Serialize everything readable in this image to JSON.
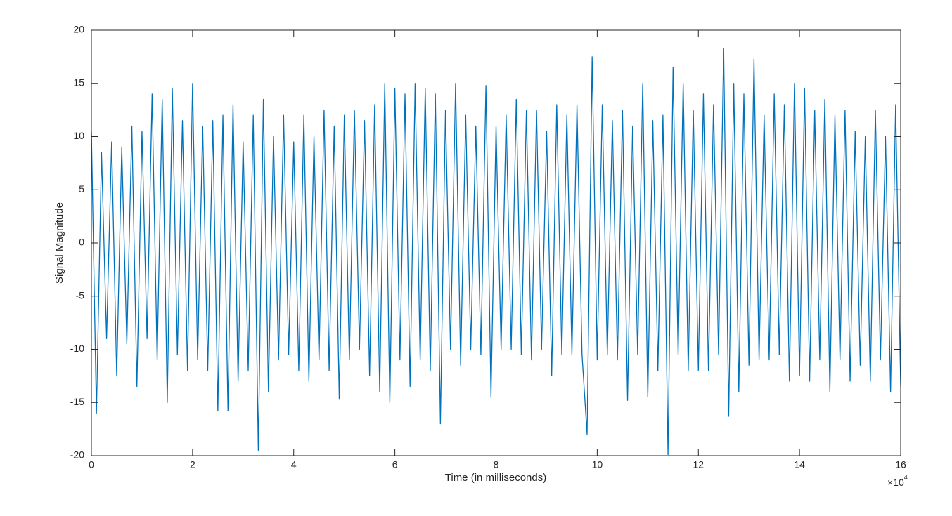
{
  "chart_data": {
    "type": "line",
    "xlabel": "Time (in milliseconds)",
    "ylabel": "Signal Magnitude",
    "x_exponent": {
      "base": "×10",
      "power": "4"
    },
    "xlim": [
      0,
      160000
    ],
    "ylim": [
      -20,
      20
    ],
    "xticks": [
      0,
      {
        "value": 20000,
        "label": "2"
      },
      {
        "value": 40000,
        "label": "4"
      },
      {
        "value": 60000,
        "label": "6"
      },
      {
        "value": 80000,
        "label": "8"
      },
      {
        "value": 100000,
        "label": "10"
      },
      {
        "value": 120000,
        "label": "12"
      },
      {
        "value": 140000,
        "label": "14"
      },
      {
        "value": 160000,
        "label": "16"
      }
    ],
    "yticks": [
      -20,
      -15,
      -10,
      -5,
      0,
      5,
      10,
      15,
      20
    ],
    "grid": false,
    "series": [
      {
        "color": "#0072bd",
        "x": [
          0,
          1000,
          2000,
          3000,
          4000,
          5000,
          6000,
          7000,
          8000,
          9000,
          10000,
          11000,
          12000,
          13000,
          14000,
          15000,
          16000,
          17000,
          18000,
          19000,
          20000,
          21000,
          22000,
          23000,
          24000,
          25000,
          26000,
          27000,
          28000,
          29000,
          30000,
          31000,
          32000,
          33000,
          34000,
          35000,
          36000,
          37000,
          38000,
          39000,
          40000,
          41000,
          42000,
          43000,
          44000,
          45000,
          46000,
          47000,
          48000,
          49000,
          50000,
          51000,
          52000,
          53000,
          54000,
          55000,
          56000,
          57000,
          58000,
          59000,
          60000,
          61000,
          62000,
          63000,
          64000,
          65000,
          66000,
          67000,
          68000,
          69000,
          70000,
          71000,
          72000,
          73000,
          74000,
          75000,
          76000,
          77000,
          78000,
          79000,
          80000,
          81000,
          82000,
          83000,
          84000,
          85000,
          86000,
          87000,
          88000,
          89000,
          90000,
          91000,
          92000,
          93000,
          94000,
          95000,
          96000,
          97000,
          98000,
          99000,
          100000,
          101000,
          102000,
          103000,
          104000,
          105000,
          106000,
          107000,
          108000,
          109000,
          110000,
          111000,
          112000,
          113000,
          114000,
          115000,
          116000,
          117000,
          118000,
          119000,
          120000,
          121000,
          122000,
          123000,
          124000,
          125000,
          126000,
          127000,
          128000,
          129000,
          130000,
          131000,
          132000,
          133000,
          134000,
          135000,
          136000,
          137000,
          138000,
          139000,
          140000,
          141000,
          142000,
          143000,
          144000,
          145000,
          146000,
          147000,
          148000,
          149000,
          150000,
          151000,
          152000,
          153000,
          154000,
          155000,
          156000,
          157000,
          158000,
          159000,
          160000
        ],
        "values": [
          10.5,
          -16,
          8.5,
          -9,
          9.5,
          -12.5,
          9,
          -9.5,
          11,
          -13.5,
          10.5,
          -9,
          14,
          -11,
          13.5,
          -15,
          14.5,
          -10.5,
          11.5,
          -12,
          15,
          -11,
          11,
          -12,
          11.5,
          -15.8,
          12,
          -15.8,
          13,
          -13,
          9.5,
          -12,
          12,
          -19.5,
          13.5,
          -14,
          10,
          -11,
          12,
          -10.5,
          9.5,
          -12,
          12,
          -13,
          10,
          -11,
          12.5,
          -12,
          11,
          -14.7,
          12,
          -11,
          12.5,
          -10,
          11.5,
          -12.5,
          13,
          -14,
          15,
          -15,
          14.5,
          -11,
          14,
          -13.5,
          15,
          -11,
          14.5,
          -12,
          14,
          -17,
          12.5,
          -10,
          15,
          -11.5,
          12,
          -10,
          11,
          -10.5,
          14.8,
          -14.5,
          11,
          -10,
          12,
          -10,
          13.5,
          -10.5,
          12.5,
          -11,
          12.5,
          -10,
          10.5,
          -12.5,
          13,
          -10.5,
          12,
          -10.5,
          13,
          -10.5,
          -18,
          17.5,
          -11,
          13,
          -10.5,
          11.5,
          -11,
          12.5,
          -14.8,
          11,
          -10.5,
          15,
          -14.5,
          11.5,
          -12,
          12,
          -19.9,
          16.5,
          -10.5,
          15,
          -12,
          12.5,
          -12,
          14,
          -12,
          13,
          -10.5,
          18.3,
          -16.3,
          15,
          -14,
          14,
          -11.5,
          17.3,
          -11,
          12,
          -11,
          14,
          -10.5,
          13,
          -13,
          15,
          -12.5,
          14.5,
          -13,
          12.5,
          -11,
          13.5,
          -14,
          12,
          -11,
          12.5,
          -13,
          10.5,
          -11.5,
          10,
          -13,
          12.5,
          -11,
          10,
          -14,
          13,
          -13.5
        ]
      }
    ]
  }
}
